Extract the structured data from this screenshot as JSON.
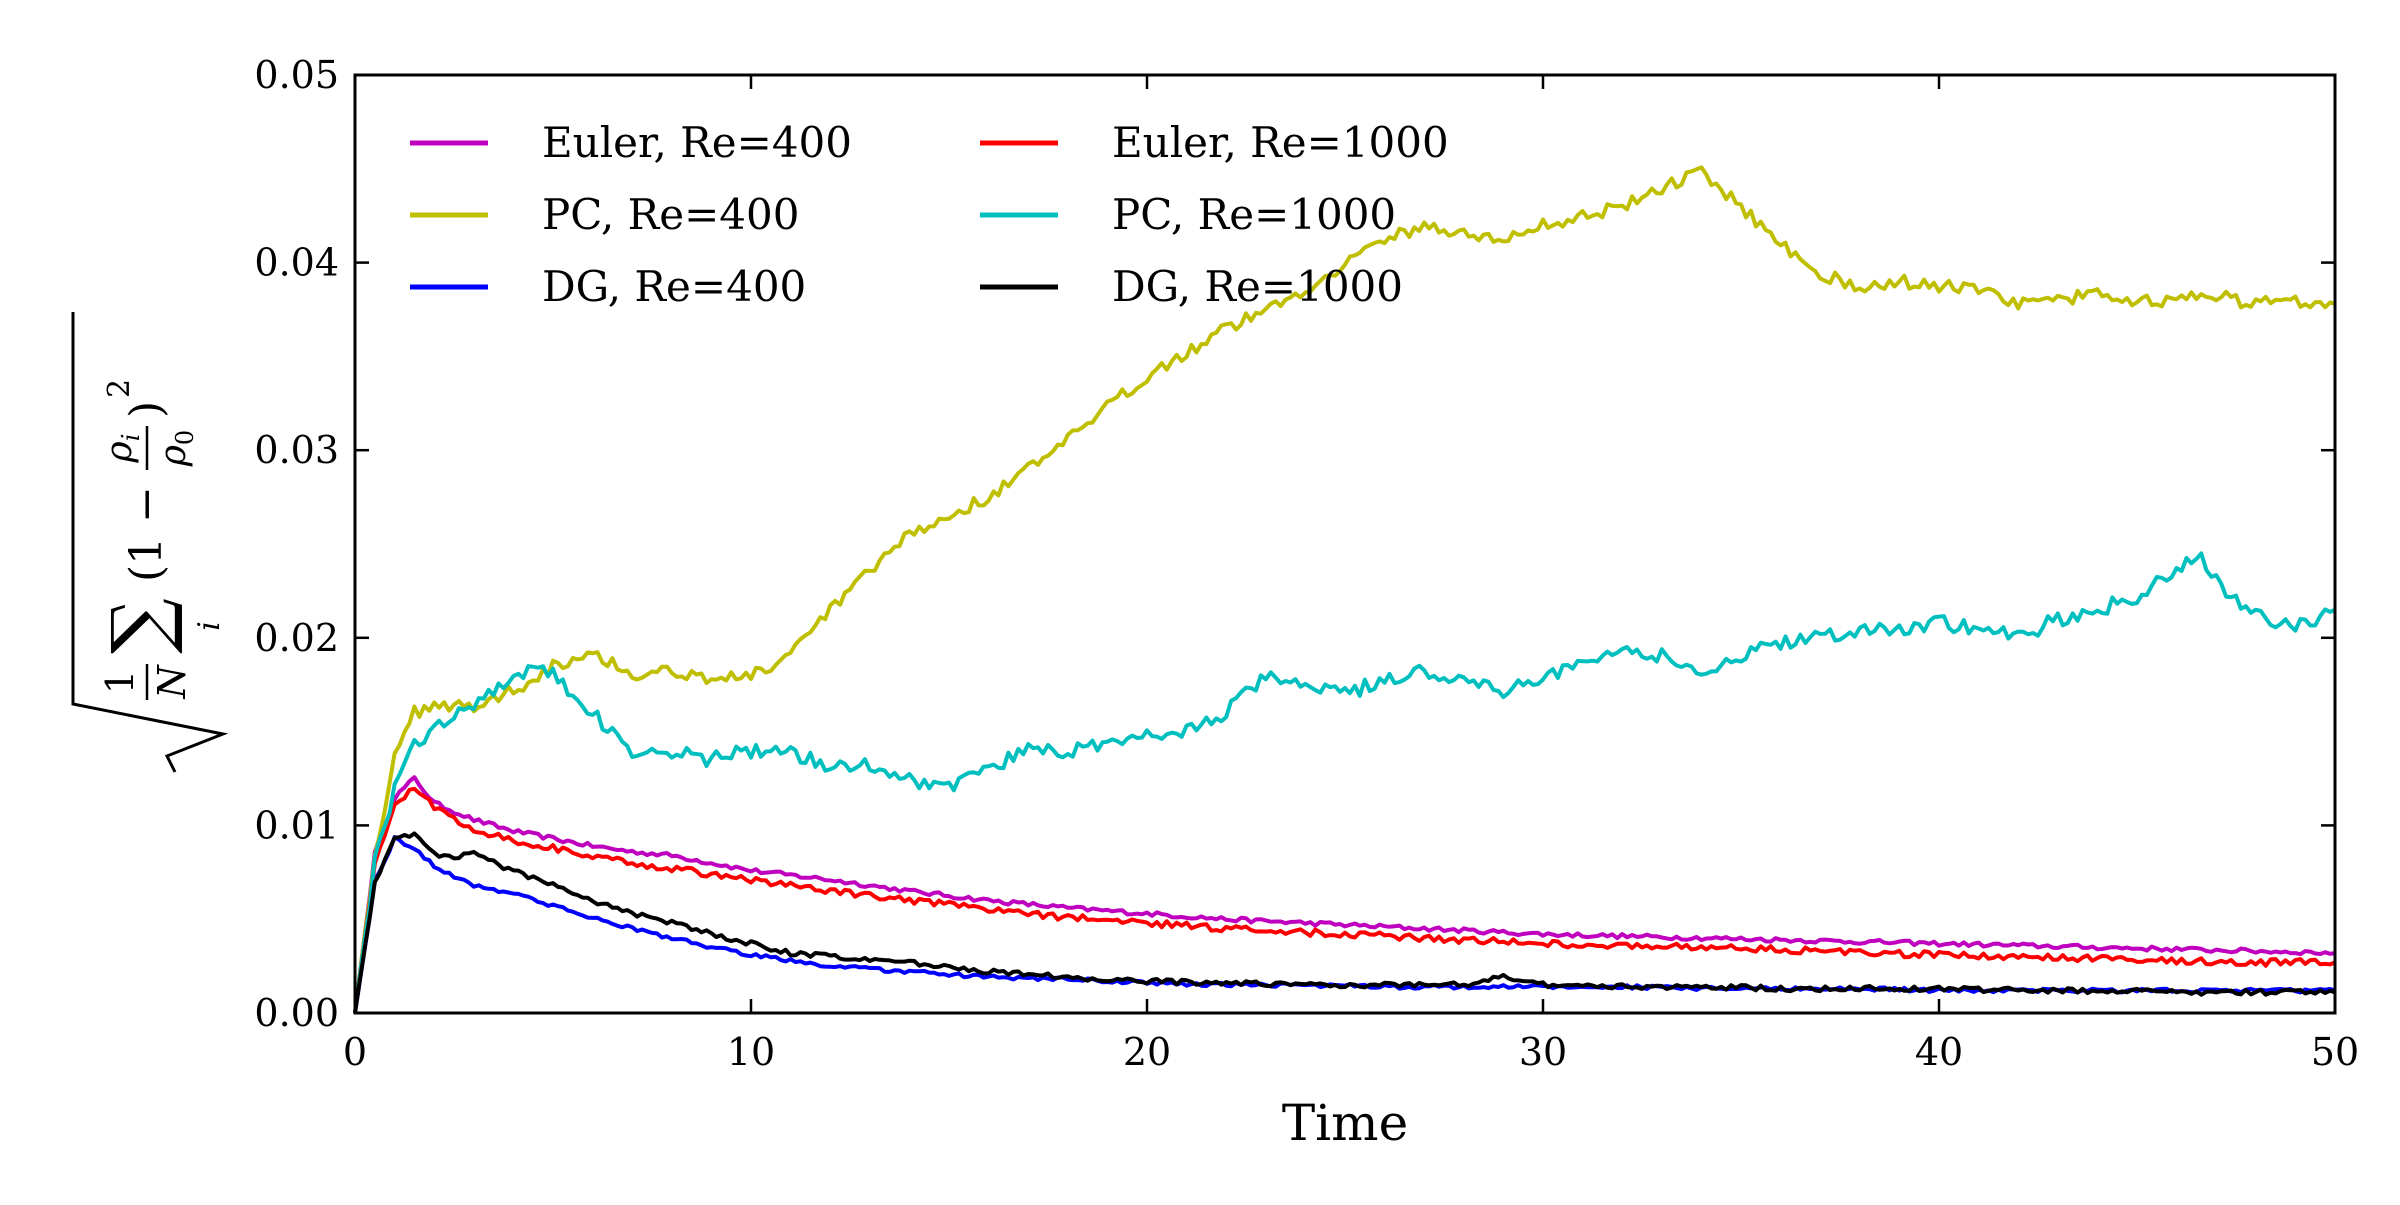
{
  "chart_data": {
    "type": "line",
    "xlabel": "Time",
    "ylabel": "√( (1/N) Σ_i (1 − ρ_i/ρ_0)² )",
    "xlim": [
      0,
      50
    ],
    "ylim": [
      0,
      0.05
    ],
    "x_ticks": [
      "0",
      "10",
      "20",
      "30",
      "40",
      "50"
    ],
    "y_ticks": [
      "0.00",
      "0.01",
      "0.02",
      "0.03",
      "0.04",
      "0.05"
    ],
    "grid": false,
    "legend_position": "top-left",
    "legend_columns": 2,
    "series": [
      {
        "name": "Euler, Re=400",
        "color": "#bf00bf",
        "x": [
          0,
          0.5,
          1,
          1.5,
          2,
          3,
          4,
          5,
          6,
          7,
          8,
          9,
          10,
          12,
          14,
          16,
          18,
          20,
          22,
          24,
          26,
          28,
          30,
          32,
          34,
          36,
          38,
          40,
          42,
          44,
          46,
          48,
          50
        ],
        "y": [
          0,
          0.0085,
          0.0115,
          0.0125,
          0.0112,
          0.0103,
          0.0097,
          0.0093,
          0.0089,
          0.0086,
          0.0084,
          0.008,
          0.0076,
          0.0071,
          0.0065,
          0.006,
          0.0056,
          0.0053,
          0.005,
          0.0048,
          0.0046,
          0.0044,
          0.0042,
          0.0041,
          0.004,
          0.0039,
          0.0038,
          0.0037,
          0.0036,
          0.0035,
          0.0034,
          0.0033,
          0.0032
        ]
      },
      {
        "name": "PC, Re=400",
        "color": "#bfbf00",
        "x": [
          0,
          0.5,
          1,
          1.5,
          2,
          3,
          4,
          5,
          6,
          7,
          8,
          9,
          10,
          11,
          12,
          13,
          14,
          15,
          16,
          18,
          20,
          22,
          24,
          25,
          26,
          27,
          28,
          29,
          30,
          31,
          32,
          33,
          34,
          35,
          36,
          37,
          38,
          39,
          40,
          41,
          42,
          43,
          44,
          45,
          46,
          47,
          48,
          49,
          50
        ],
        "y": [
          0,
          0.0085,
          0.0135,
          0.016,
          0.0165,
          0.0163,
          0.0172,
          0.0185,
          0.0193,
          0.018,
          0.0183,
          0.0178,
          0.018,
          0.019,
          0.0215,
          0.0235,
          0.0255,
          0.0265,
          0.0275,
          0.0305,
          0.034,
          0.0365,
          0.0385,
          0.04,
          0.0412,
          0.042,
          0.0415,
          0.0412,
          0.042,
          0.0425,
          0.043,
          0.044,
          0.0448,
          0.043,
          0.041,
          0.0395,
          0.0385,
          0.039,
          0.0388,
          0.0385,
          0.0378,
          0.038,
          0.0383,
          0.038,
          0.038,
          0.0382,
          0.0378,
          0.038,
          0.0378
        ]
      },
      {
        "name": "DG, Re=400",
        "color": "#0000ff",
        "x": [
          0,
          0.5,
          1,
          1.5,
          2,
          3,
          4,
          5,
          6,
          7,
          8,
          9,
          10,
          11,
          12,
          14,
          16,
          18,
          20,
          22,
          24,
          26,
          28,
          30,
          32,
          34,
          36,
          38,
          40,
          42,
          44,
          46,
          48,
          50
        ],
        "y": [
          0,
          0.007,
          0.0093,
          0.0088,
          0.0078,
          0.0068,
          0.0064,
          0.0057,
          0.0051,
          0.0045,
          0.004,
          0.0035,
          0.0031,
          0.0028,
          0.0025,
          0.0022,
          0.0019,
          0.0018,
          0.0016,
          0.0015,
          0.0015,
          0.0014,
          0.0014,
          0.0014,
          0.0014,
          0.0013,
          0.0013,
          0.0013,
          0.0012,
          0.0012,
          0.0012,
          0.0012,
          0.0012,
          0.0012
        ]
      },
      {
        "name": "Euler, Re=1000",
        "color": "#ff0000",
        "x": [
          0,
          0.5,
          1,
          1.5,
          2,
          3,
          4,
          5,
          6,
          7,
          8,
          9,
          10,
          12,
          14,
          16,
          18,
          20,
          22,
          24,
          26,
          28,
          30,
          32,
          34,
          36,
          38,
          40,
          42,
          44,
          46,
          48,
          50
        ],
        "y": [
          0,
          0.008,
          0.011,
          0.012,
          0.011,
          0.0098,
          0.0092,
          0.0088,
          0.0083,
          0.008,
          0.0077,
          0.0074,
          0.0071,
          0.0065,
          0.006,
          0.0055,
          0.0051,
          0.0048,
          0.0045,
          0.0043,
          0.0041,
          0.0039,
          0.0037,
          0.0036,
          0.0035,
          0.0034,
          0.0032,
          0.0031,
          0.003,
          0.0029,
          0.0028,
          0.0027,
          0.0027
        ]
      },
      {
        "name": "PC, Re=1000",
        "color": "#00bfbf",
        "x": [
          0,
          0.5,
          1,
          1.5,
          2,
          2.5,
          3,
          3.5,
          4,
          4.5,
          5,
          5.5,
          6,
          6.5,
          7,
          8,
          9,
          10,
          11,
          12,
          13,
          14,
          15,
          16,
          17,
          18,
          19,
          20,
          21,
          22,
          23,
          24,
          25,
          26,
          27,
          28,
          29,
          30,
          31,
          32,
          33,
          34,
          35,
          36,
          37,
          38,
          39,
          40,
          41,
          42,
          43,
          44,
          45,
          46,
          46.5,
          47,
          48,
          49,
          50
        ],
        "y": [
          0,
          0.008,
          0.012,
          0.0145,
          0.015,
          0.016,
          0.0165,
          0.0172,
          0.018,
          0.0185,
          0.018,
          0.017,
          0.016,
          0.0148,
          0.014,
          0.014,
          0.0135,
          0.014,
          0.0138,
          0.0132,
          0.0133,
          0.0125,
          0.012,
          0.013,
          0.014,
          0.014,
          0.0142,
          0.0148,
          0.015,
          0.016,
          0.018,
          0.0175,
          0.017,
          0.0178,
          0.0182,
          0.0178,
          0.0172,
          0.018,
          0.0185,
          0.0195,
          0.019,
          0.018,
          0.019,
          0.0198,
          0.02,
          0.0205,
          0.0205,
          0.0208,
          0.0205,
          0.02,
          0.021,
          0.0215,
          0.0222,
          0.0235,
          0.0245,
          0.023,
          0.0212,
          0.0205,
          0.0215
        ]
      },
      {
        "name": "DG, Re=1000",
        "color": "#000000",
        "x": [
          0,
          0.5,
          1,
          1.5,
          2,
          2.5,
          3,
          3.5,
          4,
          5,
          6,
          7,
          8,
          9,
          10,
          11,
          12,
          14,
          16,
          18,
          20,
          22,
          24,
          26,
          28,
          29,
          30,
          32,
          34,
          36,
          38,
          40,
          42,
          44,
          46,
          48,
          50
        ],
        "y": [
          0,
          0.007,
          0.0093,
          0.0095,
          0.0085,
          0.0082,
          0.0087,
          0.008,
          0.0076,
          0.0068,
          0.006,
          0.0053,
          0.0048,
          0.0042,
          0.0037,
          0.0032,
          0.003,
          0.0027,
          0.0022,
          0.0019,
          0.0017,
          0.0016,
          0.0015,
          0.0015,
          0.0015,
          0.002,
          0.0015,
          0.0014,
          0.0014,
          0.0013,
          0.0013,
          0.0013,
          0.0012,
          0.0012,
          0.0011,
          0.0011,
          0.0011
        ]
      }
    ]
  }
}
